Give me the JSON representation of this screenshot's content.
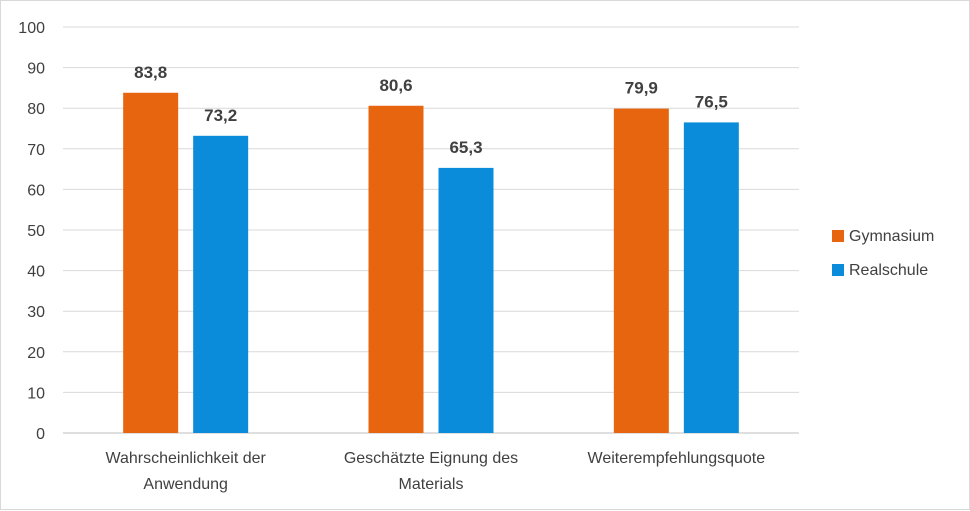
{
  "chart_data": {
    "type": "bar",
    "title": "",
    "xlabel": "",
    "ylabel": "",
    "ylim": [
      0,
      100
    ],
    "yticks": [
      0,
      10,
      20,
      30,
      40,
      50,
      60,
      70,
      80,
      90,
      100
    ],
    "grid": true,
    "legend_position": "right",
    "categories": [
      [
        "Wahrscheinlichkeit der",
        "Anwendung"
      ],
      [
        "Geschätzte Eignung des",
        "Materials"
      ],
      [
        "Weiterempfehlungsquote"
      ]
    ],
    "series": [
      {
        "name": "Gymnasium",
        "color": "#E8650F",
        "values": [
          83.8,
          80.6,
          79.9
        ],
        "labels": [
          "83,8",
          "80,6",
          "79,9"
        ]
      },
      {
        "name": "Realschule",
        "color": "#0A8CDB",
        "values": [
          73.2,
          65.3,
          76.5
        ],
        "labels": [
          "73,2",
          "65,3",
          "76,5"
        ]
      }
    ]
  }
}
